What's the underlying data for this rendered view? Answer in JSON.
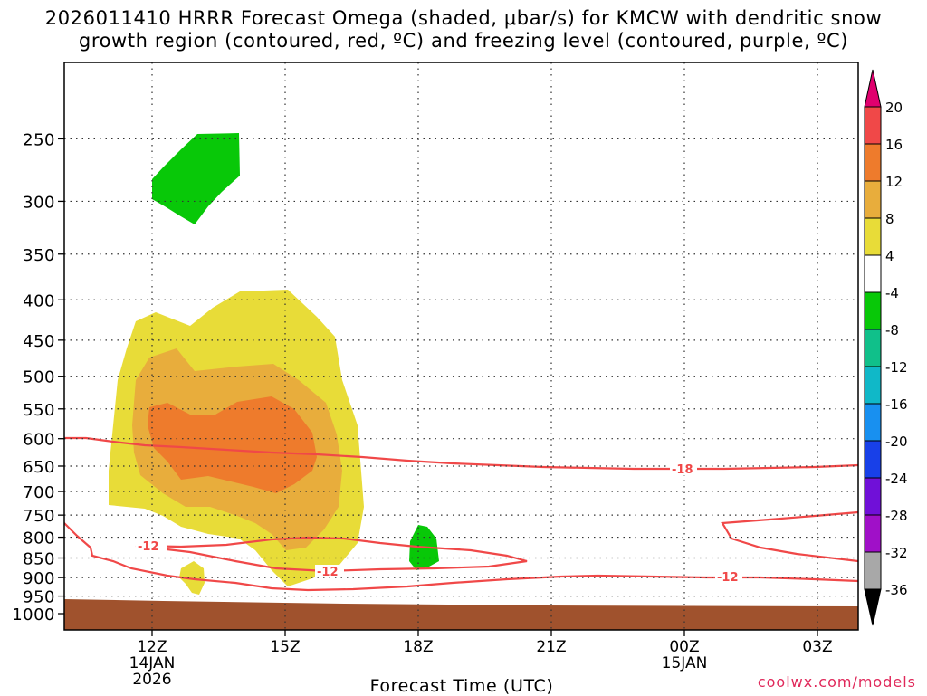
{
  "chart_data": {
    "type": "contour",
    "title_line1": "2026011410 HRRR Forecast Omega (shaded, μbar/s) for KMCW with dendritic snow",
    "title_line2": "growth region (contoured, red, ºC) and freezing level (contoured, purple, ºC)",
    "xlabel": "Forecast Time (UTC)",
    "ylabel": "",
    "y_ticks": [
      250,
      300,
      350,
      400,
      450,
      500,
      550,
      600,
      650,
      700,
      750,
      800,
      850,
      900,
      950,
      1000
    ],
    "ylim": [
      1000,
      200
    ],
    "x_ticks": [
      {
        "hour": 12,
        "label": "12Z",
        "date": "14JAN",
        "year": "2026"
      },
      {
        "hour": 15,
        "label": "15Z"
      },
      {
        "hour": 18,
        "label": "18Z"
      },
      {
        "hour": 21,
        "label": "21Z"
      },
      {
        "hour": 24,
        "label": "00Z",
        "date": "15JAN"
      },
      {
        "hour": 27,
        "label": "03Z"
      }
    ],
    "xlim_hours": [
      10,
      28
    ],
    "colorbar": {
      "labels": [
        "20",
        "16",
        "12",
        "8",
        "4",
        "-4",
        "-8",
        "-12",
        "-16",
        "-20",
        "-24",
        "-28",
        "-32",
        "-36"
      ],
      "colors": [
        "#e0006e",
        "#f04848",
        "#ee7b2c",
        "#e8ad3c",
        "#e8dc38",
        "#ffffff",
        "#08c808",
        "#10c08a",
        "#10b8c8",
        "#1890f0",
        "#1840e8",
        "#7010d8",
        "#a010c8",
        "#a8a8a8",
        "#000000"
      ]
    },
    "omega_regions": [
      {
        "value_range": "-4 to -8",
        "color": "#08c808",
        "time_hours": [
          12.0,
          14.0
        ],
        "pressure_hpa": [
          250,
          330
        ]
      },
      {
        "value_range": "-4 to -8",
        "color": "#08c808",
        "time_hours": [
          17.8,
          18.5
        ],
        "pressure_hpa": [
          780,
          880
        ]
      },
      {
        "value_range": "4 to 8",
        "color": "#e8dc38",
        "time_hours": [
          11.0,
          16.7
        ],
        "pressure_hpa": [
          400,
          920
        ]
      },
      {
        "value_range": "4 to 8",
        "color": "#e8dc38",
        "time_hours": [
          12.6,
          13.2
        ],
        "pressure_hpa": [
          880,
          950
        ]
      },
      {
        "value_range": "8 to 12",
        "color": "#e8ad3c",
        "time_hours": [
          11.3,
          16.2
        ],
        "pressure_hpa": [
          460,
          820
        ]
      },
      {
        "value_range": "12 to 16",
        "color": "#ee7b2c",
        "time_hours": [
          11.9,
          15.7
        ],
        "pressure_hpa": [
          550,
          710
        ]
      }
    ],
    "contours": [
      {
        "label": "-18",
        "color": "#f04848",
        "description": "approx 605 hPa at 10Z rising toward 655 hPa beyond 03Z"
      },
      {
        "label": "-12",
        "color": "#f04848",
        "description": "closed contour near 830-890 hPa from 11Z to 20Z"
      },
      {
        "label": "-12",
        "color": "#f04848",
        "description": "approx 780 hPa at 10Z descending to 930 hPa, eastward near 900 hPa"
      }
    ],
    "ground_color": "#a0522d"
  },
  "footer": {
    "credit": "coolwx.com/models"
  }
}
